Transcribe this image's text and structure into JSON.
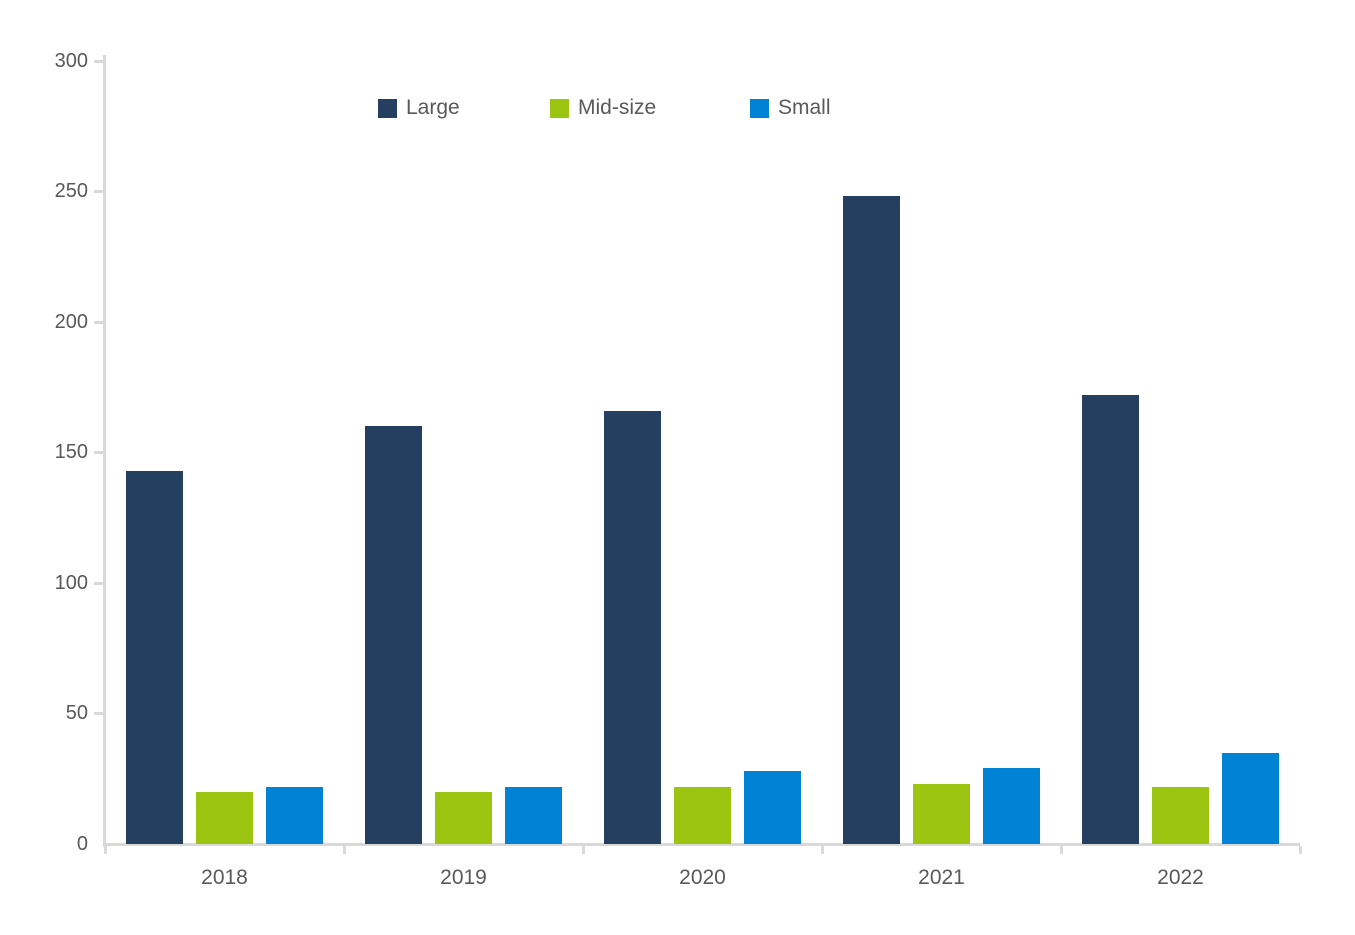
{
  "chart_data": {
    "type": "bar",
    "title": "",
    "xlabel": "",
    "ylabel": "",
    "categories": [
      "2018",
      "2019",
      "2020",
      "2021",
      "2022"
    ],
    "series": [
      {
        "name": "Large",
        "color": "#243F60",
        "values": [
          143,
          160,
          166,
          248,
          172
        ]
      },
      {
        "name": "Mid-size",
        "color": "#9BC511",
        "values": [
          20,
          20,
          22,
          23,
          22
        ]
      },
      {
        "name": "Small",
        "color": "#0082D5",
        "values": [
          22,
          22,
          28,
          29,
          35
        ]
      }
    ],
    "ylim": [
      0,
      300
    ],
    "yticks": [
      0,
      50,
      100,
      150,
      200,
      250,
      300
    ],
    "grid": false,
    "legend_position": "top",
    "axis_color": "#D9D9D9",
    "text_color": "#595959",
    "background_color": "#FFFFFF"
  }
}
